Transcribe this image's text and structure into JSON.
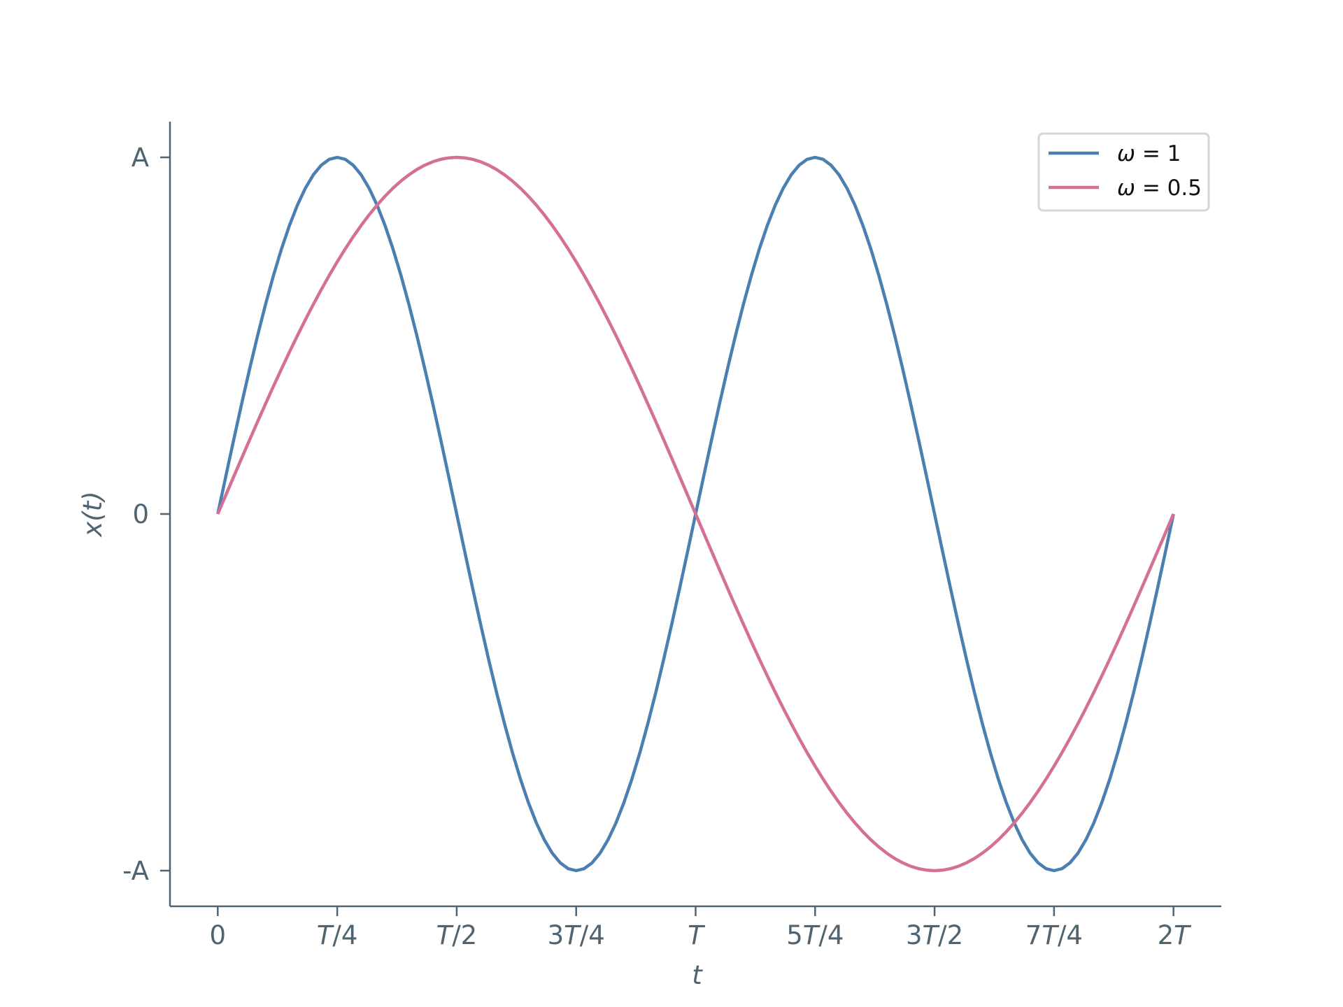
{
  "chart_data": {
    "type": "line",
    "xlabel": "t",
    "ylabel": "x(t)",
    "x_ticks": [
      {
        "value": 0,
        "label": "0"
      },
      {
        "value": 0.25,
        "label": "T/4"
      },
      {
        "value": 0.5,
        "label": "T/2"
      },
      {
        "value": 0.75,
        "label": "3T/4"
      },
      {
        "value": 1,
        "label": "T"
      },
      {
        "value": 1.25,
        "label": "5T/4"
      },
      {
        "value": 1.5,
        "label": "3T/2"
      },
      {
        "value": 1.75,
        "label": "7T/4"
      },
      {
        "value": 2,
        "label": "2T"
      }
    ],
    "y_ticks": [
      {
        "value": -1,
        "label": "-A"
      },
      {
        "value": 0,
        "label": "0"
      },
      {
        "value": 1,
        "label": "A"
      }
    ],
    "xlim": [
      -0.1,
      2.1
    ],
    "ylim": [
      -1.1,
      1.1
    ],
    "grid": false,
    "legend": "top-right",
    "series": [
      {
        "name": "ω = 1",
        "function": "sin",
        "omega": 1,
        "amplitude": 1,
        "color": "#4a7fb0",
        "samples": 121
      },
      {
        "name": "ω = 0.5",
        "function": "sin",
        "omega": 0.5,
        "amplitude": 1,
        "color": "#d47095",
        "samples": 121
      }
    ],
    "axis_color": "#4f6470"
  }
}
